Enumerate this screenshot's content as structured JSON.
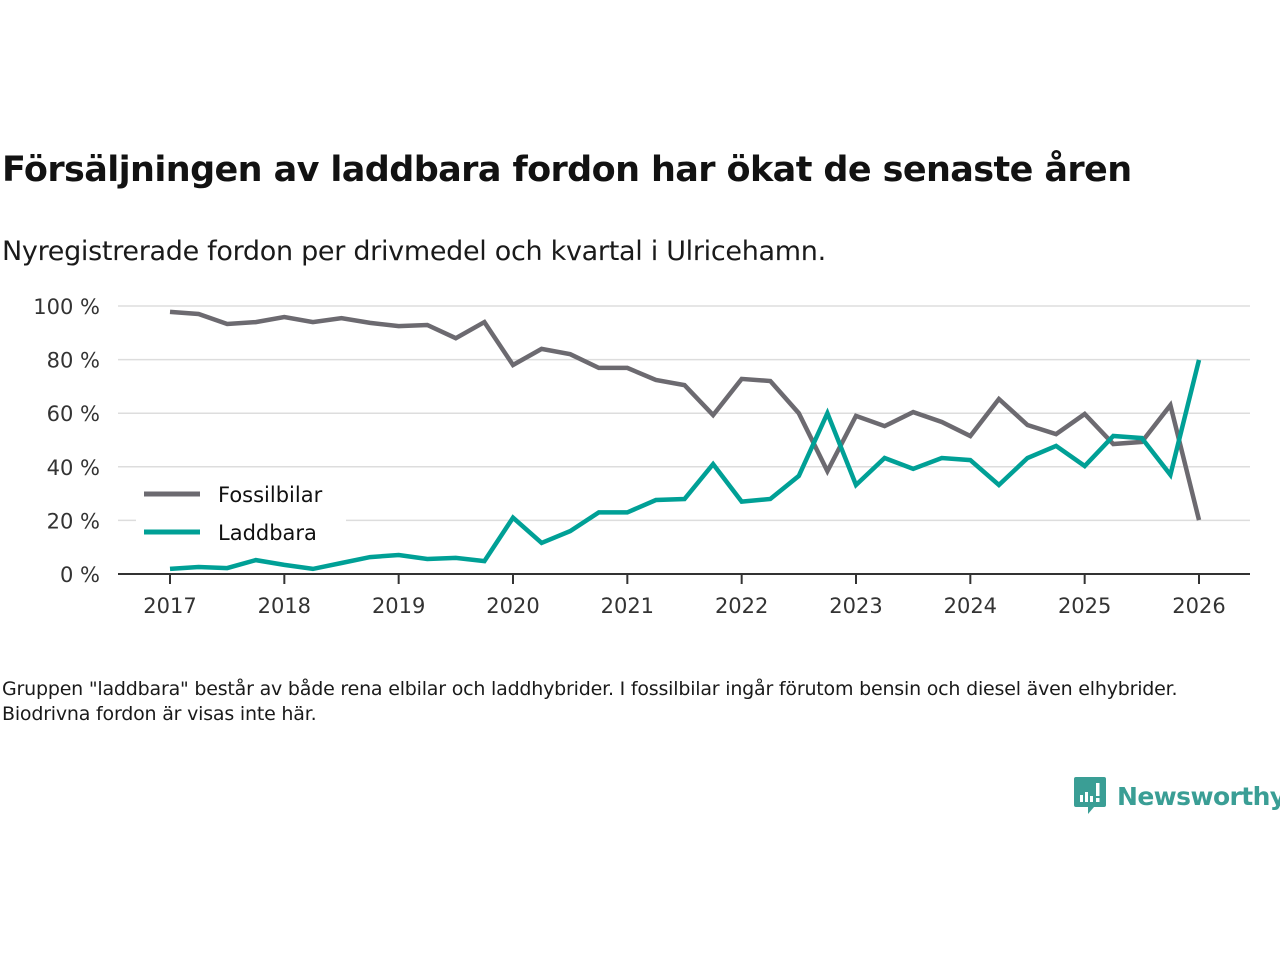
{
  "header": {
    "title": "Försäljningen av laddbara fordon har ökat de senaste åren",
    "subtitle": "Nyregistrerade fordon per drivmedel och kvartal i Ulricehamn."
  },
  "footer": {
    "note": "Gruppen \"laddbara\" består av både rena elbilar och laddhybrider. I fossilbilar ingår förutom bensin och diesel även elhybrider. Biodrivna fordon är visas inte här.",
    "brand": "Newsworthy",
    "brand_icon": "bar-chart-speech-bubble-icon",
    "brand_color": "#3a9e95"
  },
  "chart_data": {
    "type": "line",
    "title": "Försäljningen av laddbara fordon har ökat de senaste åren",
    "subtitle": "Nyregistrerade fordon per drivmedel och kvartal i Ulricehamn.",
    "xlabel": "",
    "ylabel": "",
    "x": [
      2017.0,
      2017.25,
      2017.5,
      2017.75,
      2018.0,
      2018.25,
      2018.5,
      2018.75,
      2019.0,
      2019.25,
      2019.5,
      2019.75,
      2020.0,
      2020.25,
      2020.5,
      2020.75,
      2021.0,
      2021.25,
      2021.5,
      2021.75,
      2022.0,
      2022.25,
      2022.5,
      2022.75,
      2023.0,
      2023.25,
      2023.5,
      2023.75,
      2024.0,
      2024.25,
      2024.5,
      2024.75,
      2025.0,
      2025.25,
      2025.5,
      2025.75,
      2026.0
    ],
    "xlim": [
      2016.56,
      2026.45
    ],
    "ylim": [
      0,
      100
    ],
    "x_ticks": [
      2017,
      2018,
      2019,
      2020,
      2021,
      2022,
      2023,
      2024,
      2025,
      2026
    ],
    "x_tick_labels": [
      "2017",
      "2018",
      "2019",
      "2020",
      "2021",
      "2022",
      "2023",
      "2024",
      "2025",
      "2026"
    ],
    "y_ticks": [
      0,
      20,
      40,
      60,
      80,
      100
    ],
    "y_tick_labels": [
      "0 %",
      "20 %",
      "40 %",
      "60 %",
      "80 %",
      "100 %"
    ],
    "grid": true,
    "legend_position": "bottom-left",
    "series": [
      {
        "name": "Fossilbilar",
        "color": "#6c6a70",
        "values": [
          97.8,
          97.0,
          93.3,
          94.0,
          95.9,
          94.0,
          95.5,
          93.7,
          92.5,
          92.9,
          88.0,
          94.0,
          78.0,
          84.0,
          82.0,
          76.9,
          76.9,
          72.4,
          70.5,
          59.3,
          72.8,
          72.0,
          60.0,
          38.4,
          59.0,
          55.2,
          60.4,
          56.7,
          51.5,
          65.3,
          55.6,
          52.2,
          59.7,
          48.5,
          49.3,
          63.0,
          20.1
        ]
      },
      {
        "name": "Laddbara",
        "color": "#00a096",
        "values": [
          1.9,
          2.6,
          2.2,
          5.2,
          3.4,
          1.9,
          4.1,
          6.3,
          7.1,
          5.6,
          6.0,
          4.8,
          21.0,
          11.6,
          16.0,
          23.0,
          23.0,
          27.6,
          28.0,
          41.0,
          27.0,
          28.0,
          36.6,
          60.0,
          33.2,
          43.3,
          39.2,
          43.3,
          42.5,
          33.2,
          43.3,
          47.8,
          40.3,
          51.5,
          50.7,
          37.0,
          79.9
        ]
      }
    ]
  }
}
